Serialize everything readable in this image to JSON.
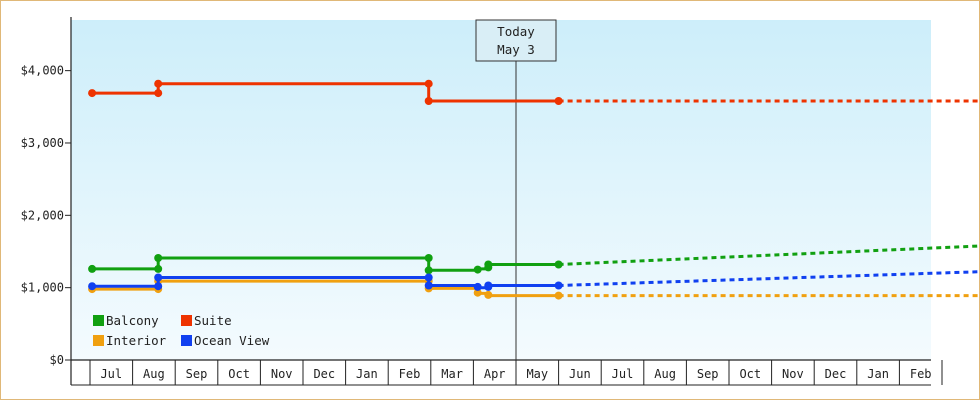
{
  "chart_data": {
    "type": "line",
    "title": "",
    "xlabel": "",
    "ylabel": "",
    "ylim": [
      0,
      4700
    ],
    "y_ticks": [
      {
        "value": 0,
        "label": "$0"
      },
      {
        "value": 1000,
        "label": "$1,000"
      },
      {
        "value": 2000,
        "label": "$2,000"
      },
      {
        "value": 3000,
        "label": "$3,000"
      },
      {
        "value": 4000,
        "label": "$4,000"
      }
    ],
    "x_months": [
      "Jul",
      "Aug",
      "Sep",
      "Oct",
      "Nov",
      "Dec",
      "Jan",
      "Feb",
      "Mar",
      "Apr",
      "May",
      "Jun",
      "Jul",
      "Aug",
      "Sep",
      "Oct",
      "Nov",
      "Dec",
      "Jan",
      "Feb"
    ],
    "today_label_1": "Today",
    "today_label_2": "May 3",
    "today_index": 10,
    "legend_placement": "bottom-left",
    "series": [
      {
        "name": "Balcony",
        "color": "#11a011",
        "points": [
          [
            -0.45,
            1260
          ],
          [
            1.1,
            1260
          ],
          [
            1.1,
            1410
          ],
          [
            7.45,
            1410
          ],
          [
            7.45,
            1240
          ],
          [
            8.6,
            1240
          ],
          [
            8.65,
            1260
          ],
          [
            8.85,
            1260
          ],
          [
            8.85,
            1320
          ],
          [
            10.5,
            1320
          ]
        ],
        "projection": [
          [
            10.5,
            1320
          ],
          [
            20.9,
            1590
          ]
        ]
      },
      {
        "name": "Suite",
        "color": "#ee3300",
        "points": [
          [
            -0.45,
            3690
          ],
          [
            1.1,
            3690
          ],
          [
            1.1,
            3820
          ],
          [
            7.45,
            3820
          ],
          [
            7.45,
            3580
          ],
          [
            10.5,
            3580
          ]
        ],
        "projection": [
          [
            10.5,
            3580
          ],
          [
            20.9,
            3580
          ]
        ]
      },
      {
        "name": "Interior",
        "color": "#f0a010",
        "points": [
          [
            -0.45,
            980
          ],
          [
            1.1,
            980
          ],
          [
            1.1,
            1090
          ],
          [
            7.45,
            1090
          ],
          [
            7.45,
            990
          ],
          [
            8.6,
            990
          ],
          [
            8.6,
            920
          ],
          [
            8.85,
            920
          ],
          [
            8.85,
            890
          ],
          [
            10.5,
            890
          ]
        ],
        "projection": [
          [
            10.5,
            890
          ],
          [
            20.9,
            890
          ]
        ]
      },
      {
        "name": "Ocean View",
        "color": "#1040f0",
        "points": [
          [
            -0.45,
            1020
          ],
          [
            1.1,
            1020
          ],
          [
            1.1,
            1140
          ],
          [
            7.45,
            1140
          ],
          [
            7.45,
            1030
          ],
          [
            8.6,
            1030
          ],
          [
            8.6,
            1000
          ],
          [
            8.85,
            1000
          ],
          [
            8.85,
            1030
          ],
          [
            10.5,
            1030
          ]
        ],
        "projection": [
          [
            10.5,
            1030
          ],
          [
            20.9,
            1230
          ]
        ]
      }
    ],
    "markers": {
      "Balcony": [
        [
          -0.45,
          1260
        ],
        [
          1.1,
          1260
        ],
        [
          1.1,
          1410
        ],
        [
          7.45,
          1410
        ],
        [
          7.45,
          1240
        ],
        [
          8.6,
          1250
        ],
        [
          8.85,
          1280
        ],
        [
          8.85,
          1320
        ],
        [
          10.5,
          1320
        ]
      ],
      "Suite": [
        [
          -0.45,
          3690
        ],
        [
          1.1,
          3690
        ],
        [
          1.1,
          3820
        ],
        [
          7.45,
          3820
        ],
        [
          7.45,
          3580
        ],
        [
          10.5,
          3580
        ]
      ],
      "Interior": [
        [
          -0.45,
          980
        ],
        [
          1.1,
          980
        ],
        [
          1.1,
          1090
        ],
        [
          7.45,
          1090
        ],
        [
          7.45,
          990
        ],
        [
          8.6,
          930
        ],
        [
          8.85,
          900
        ],
        [
          10.5,
          890
        ]
      ],
      "Ocean View": [
        [
          -0.45,
          1020
        ],
        [
          1.1,
          1020
        ],
        [
          1.1,
          1140
        ],
        [
          7.45,
          1140
        ],
        [
          7.45,
          1030
        ],
        [
          8.6,
          1010
        ],
        [
          8.85,
          1010
        ],
        [
          8.85,
          1030
        ],
        [
          10.5,
          1030
        ]
      ]
    },
    "grid": false,
    "background_gradient": [
      "#cdeefa",
      "#f4fbfe"
    ]
  }
}
